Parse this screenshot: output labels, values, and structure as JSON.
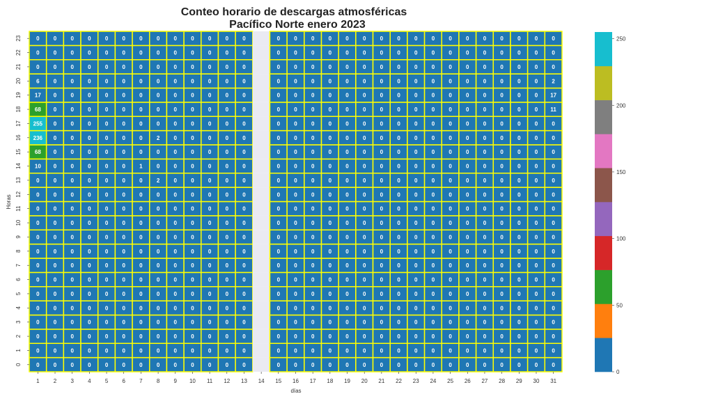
{
  "chart_data": {
    "type": "heatmap",
    "title_line1": "Conteo horario de descargas atmosféricas",
    "title_line2": "Pacífico Norte enero 2023",
    "xlabel": "días",
    "ylabel": "Horas",
    "x": [
      "1",
      "2",
      "3",
      "4",
      "5",
      "6",
      "7",
      "8",
      "9",
      "10",
      "11",
      "12",
      "13",
      "14",
      "15",
      "16",
      "17",
      "18",
      "19",
      "20",
      "21",
      "22",
      "23",
      "24",
      "25",
      "26",
      "27",
      "28",
      "29",
      "30",
      "31"
    ],
    "y": [
      "0",
      "1",
      "2",
      "3",
      "4",
      "5",
      "6",
      "7",
      "8",
      "9",
      "10",
      "11",
      "12",
      "13",
      "14",
      "15",
      "16",
      "17",
      "18",
      "19",
      "20",
      "21",
      "22",
      "23"
    ],
    "missing_days": [
      "14"
    ],
    "nonzero": [
      {
        "day": "1",
        "hour": "14",
        "value": 10
      },
      {
        "day": "1",
        "hour": "15",
        "value": 68
      },
      {
        "day": "1",
        "hour": "16",
        "value": 236
      },
      {
        "day": "1",
        "hour": "17",
        "value": 255
      },
      {
        "day": "1",
        "hour": "18",
        "value": 68
      },
      {
        "day": "1",
        "hour": "19",
        "value": 17
      },
      {
        "day": "1",
        "hour": "20",
        "value": 6
      },
      {
        "day": "7",
        "hour": "14",
        "value": 1
      },
      {
        "day": "8",
        "hour": "13",
        "value": 2
      },
      {
        "day": "8",
        "hour": "16",
        "value": 2
      },
      {
        "day": "31",
        "hour": "18",
        "value": 11
      },
      {
        "day": "31",
        "hour": "19",
        "value": 17
      },
      {
        "day": "31",
        "hour": "20",
        "value": 2
      }
    ],
    "default_value": 0,
    "grid_line_color": "#ffff00",
    "missing_color": "#eaeaf2",
    "colormap": [
      "#1f77b4",
      "#ff7f0e",
      "#2ca02c",
      "#d62728",
      "#9467bd",
      "#8c564b",
      "#e377c2",
      "#7f7f7f",
      "#bcbd22",
      "#17becf"
    ],
    "vmin": 0,
    "vmax": 255,
    "colorbar_ticks": [
      0,
      50,
      100,
      150,
      200,
      250
    ]
  }
}
